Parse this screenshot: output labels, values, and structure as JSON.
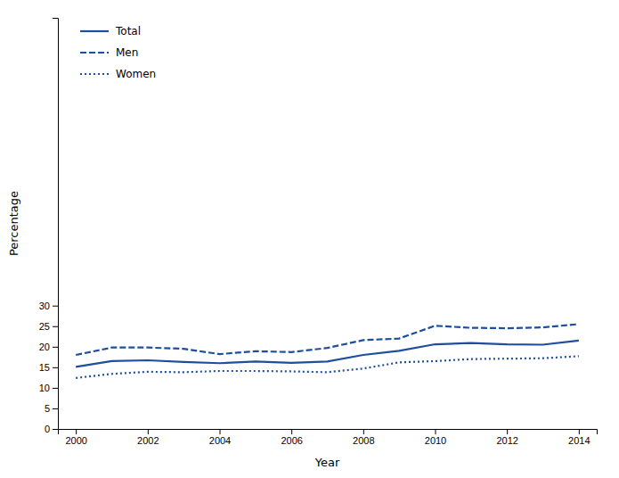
{
  "chart_data": {
    "type": "line",
    "xlabel": "Year",
    "ylabel": "Percentage",
    "x": [
      2000,
      2001,
      2002,
      2003,
      2004,
      2005,
      2006,
      2007,
      2008,
      2009,
      2010,
      2011,
      2012,
      2013,
      2014
    ],
    "series": [
      {
        "name": "Total",
        "color": "#1f4e9c",
        "line_style": "solid",
        "values": [
          15.1,
          16.5,
          16.7,
          16.3,
          16.0,
          16.4,
          16.1,
          16.4,
          18.0,
          19.0,
          20.6,
          20.9,
          20.6,
          20.5,
          21.5
        ]
      },
      {
        "name": "Men",
        "color": "#1f4e9c",
        "line_style": "dashed",
        "values": [
          18.0,
          19.8,
          19.8,
          19.5,
          18.2,
          18.9,
          18.7,
          19.7,
          21.6,
          22.0,
          25.1,
          24.6,
          24.5,
          24.7,
          25.5
        ]
      },
      {
        "name": "Women",
        "color": "#1f4e9c",
        "line_style": "dotted",
        "values": [
          12.4,
          13.4,
          13.9,
          13.8,
          14.1,
          14.1,
          14.0,
          13.8,
          14.7,
          16.2,
          16.5,
          17.0,
          17.1,
          17.2,
          17.7
        ]
      }
    ],
    "xlim": [
      1999.5,
      2014.5
    ],
    "xticks": [
      2000,
      2002,
      2004,
      2006,
      2008,
      2010,
      2012,
      2014
    ],
    "ylim": [
      0,
      100
    ],
    "yticks": [
      0,
      5,
      10,
      15,
      20,
      25,
      30
    ],
    "grid": false,
    "legend": "upper left"
  }
}
